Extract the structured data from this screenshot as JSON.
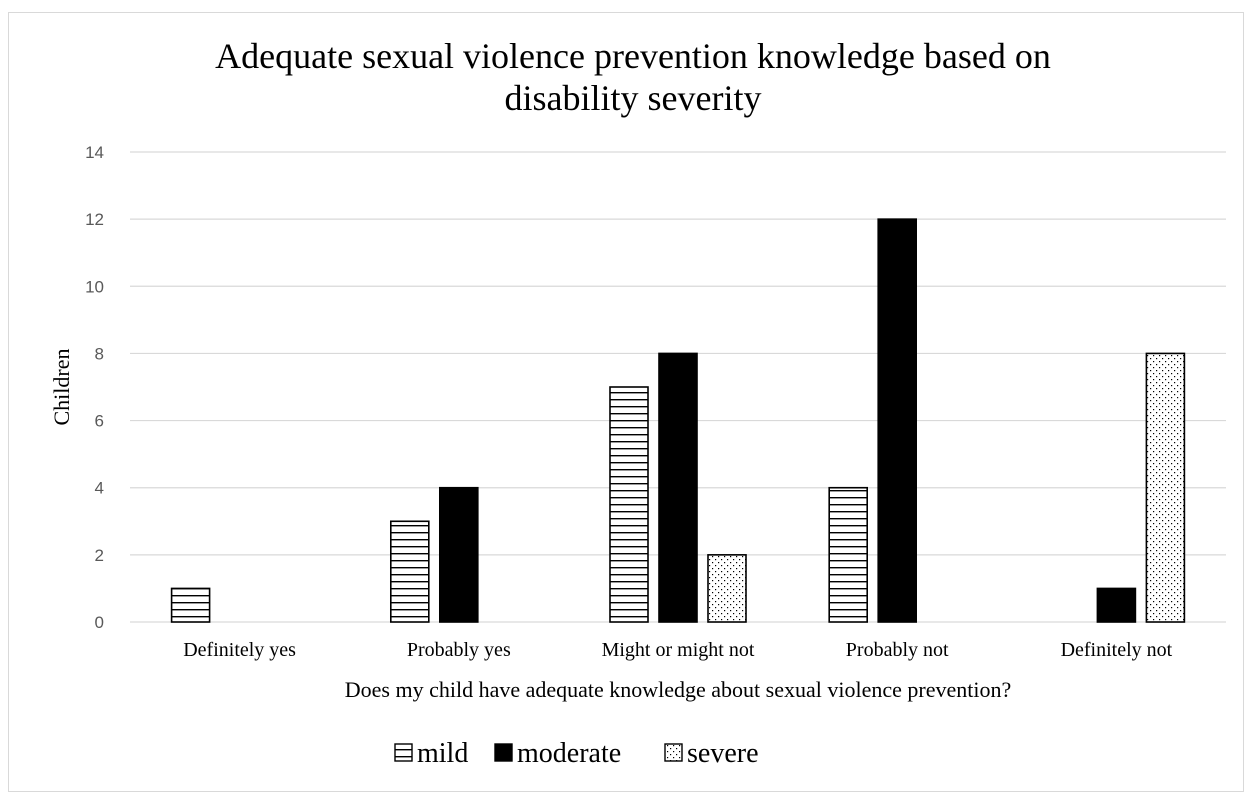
{
  "chart_data": {
    "type": "bar",
    "title_lines": [
      "Adequate sexual violence prevention knowledge based on",
      "disability severity"
    ],
    "xlabel": "Does my child have adequate knowledge about sexual violence prevention?",
    "ylabel": "Children",
    "ylim": [
      0,
      14
    ],
    "yticks": [
      "0",
      "2",
      "4",
      "6",
      "8",
      "10",
      "12",
      "14"
    ],
    "grid": true,
    "legend_position": "bottom",
    "categories": [
      "Definitely yes",
      "Probably yes",
      "Might or might not",
      "Probably not",
      "Definitely not"
    ],
    "series": [
      {
        "name": "mild",
        "pattern": "horizontal-lines",
        "values": [
          1,
          3,
          7,
          4,
          0
        ]
      },
      {
        "name": "moderate",
        "pattern": "solid",
        "values": [
          0,
          4,
          8,
          12,
          1
        ]
      },
      {
        "name": "severe",
        "pattern": "dots",
        "values": [
          0,
          0,
          2,
          0,
          8
        ]
      }
    ],
    "colors": {
      "bar_fill": "#000000",
      "gridline": "#d9d9d9",
      "tick_text": "#595959"
    }
  }
}
